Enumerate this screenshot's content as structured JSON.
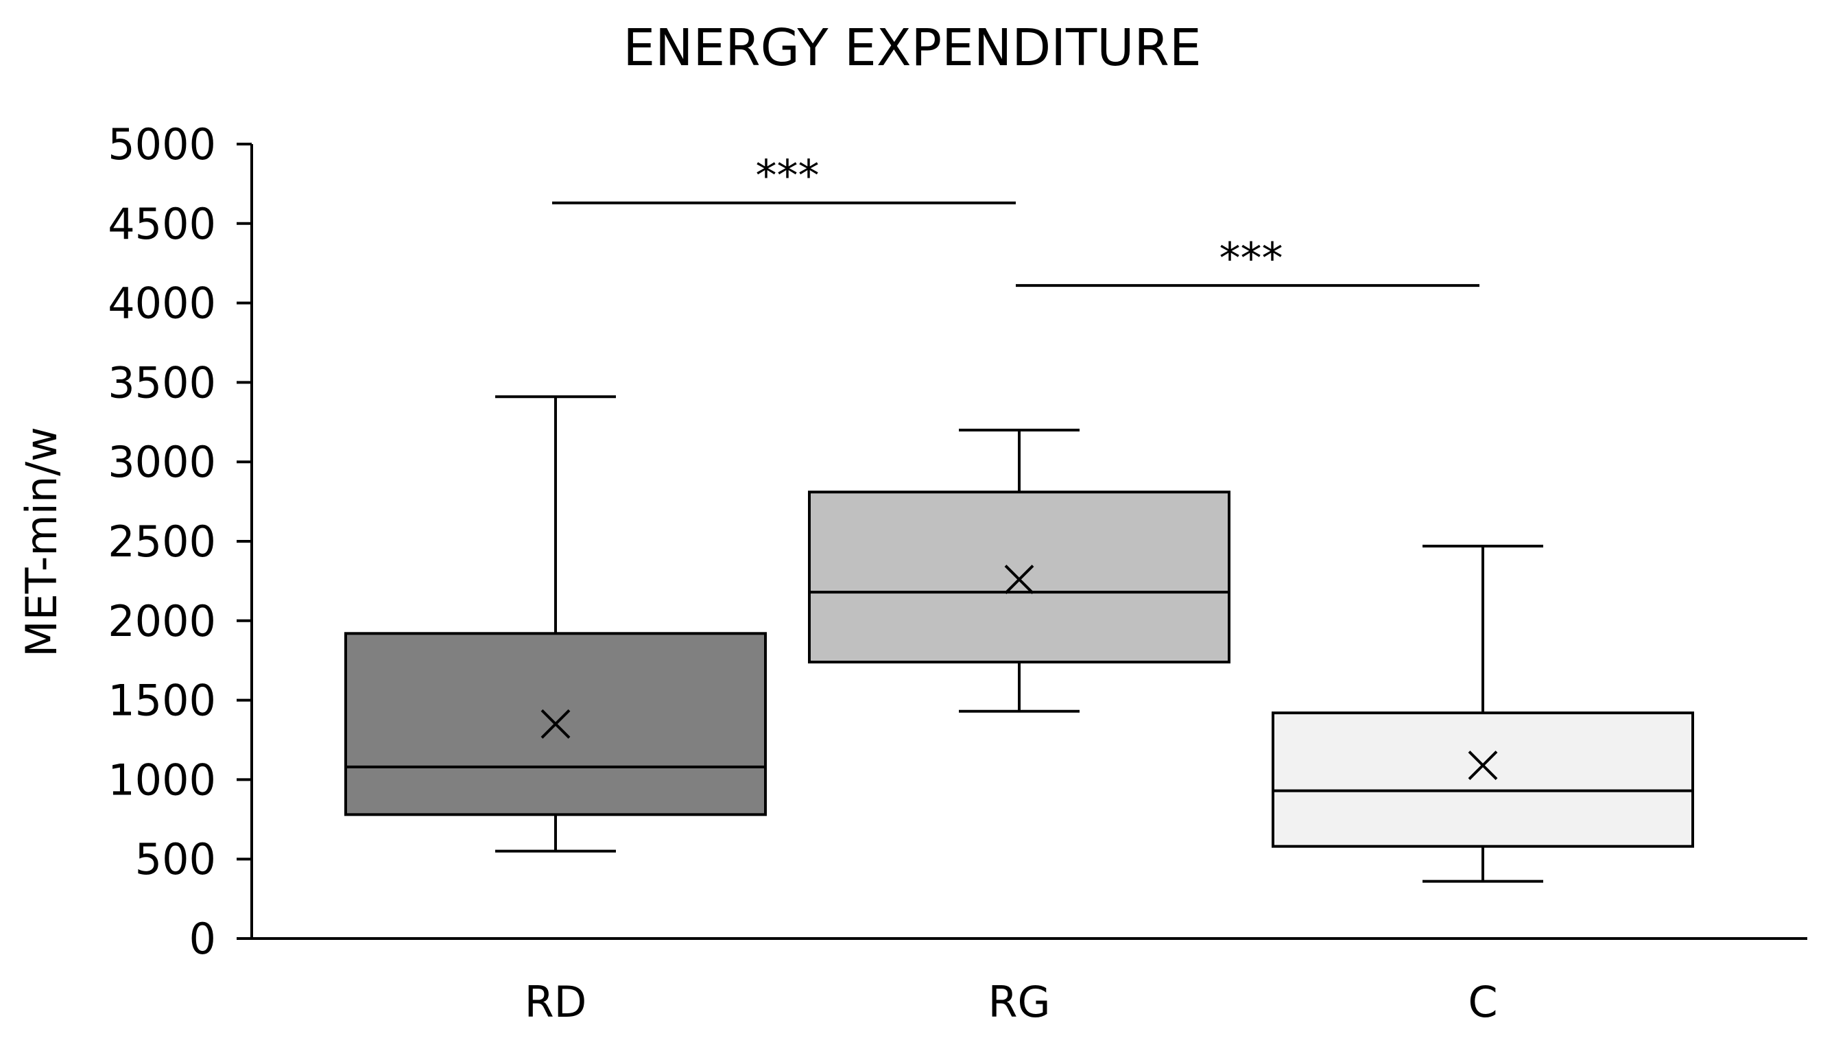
{
  "chart_data": {
    "type": "box",
    "title": "ENERGY EXPENDITURE",
    "xlabel": "",
    "ylabel": "MET-min/w",
    "ylim": [
      0,
      5000
    ],
    "yticks": [
      0,
      500,
      1000,
      1500,
      2000,
      2500,
      3000,
      3500,
      4000,
      4500,
      5000
    ],
    "categories": [
      "RD",
      "RG",
      "C"
    ],
    "boxes": [
      {
        "category": "RD",
        "min": 550,
        "q1": 780,
        "median": 1080,
        "q3": 1920,
        "max": 3410,
        "mean": 1350,
        "fill": "#808080"
      },
      {
        "category": "RG",
        "min": 1430,
        "q1": 1740,
        "median": 2180,
        "q3": 2810,
        "max": 3200,
        "mean": 2260,
        "fill": "#c0c0c0"
      },
      {
        "category": "C",
        "min": 360,
        "q1": 580,
        "median": 930,
        "q3": 1420,
        "max": 2470,
        "mean": 1090,
        "fill": "#f2f2f2"
      }
    ],
    "significance": [
      {
        "from": "RD",
        "to": "RG",
        "y": 4630,
        "label": "***"
      },
      {
        "from": "RG",
        "to": "C",
        "y": 4110,
        "label": "***"
      }
    ],
    "grid": false,
    "legend": "none"
  }
}
